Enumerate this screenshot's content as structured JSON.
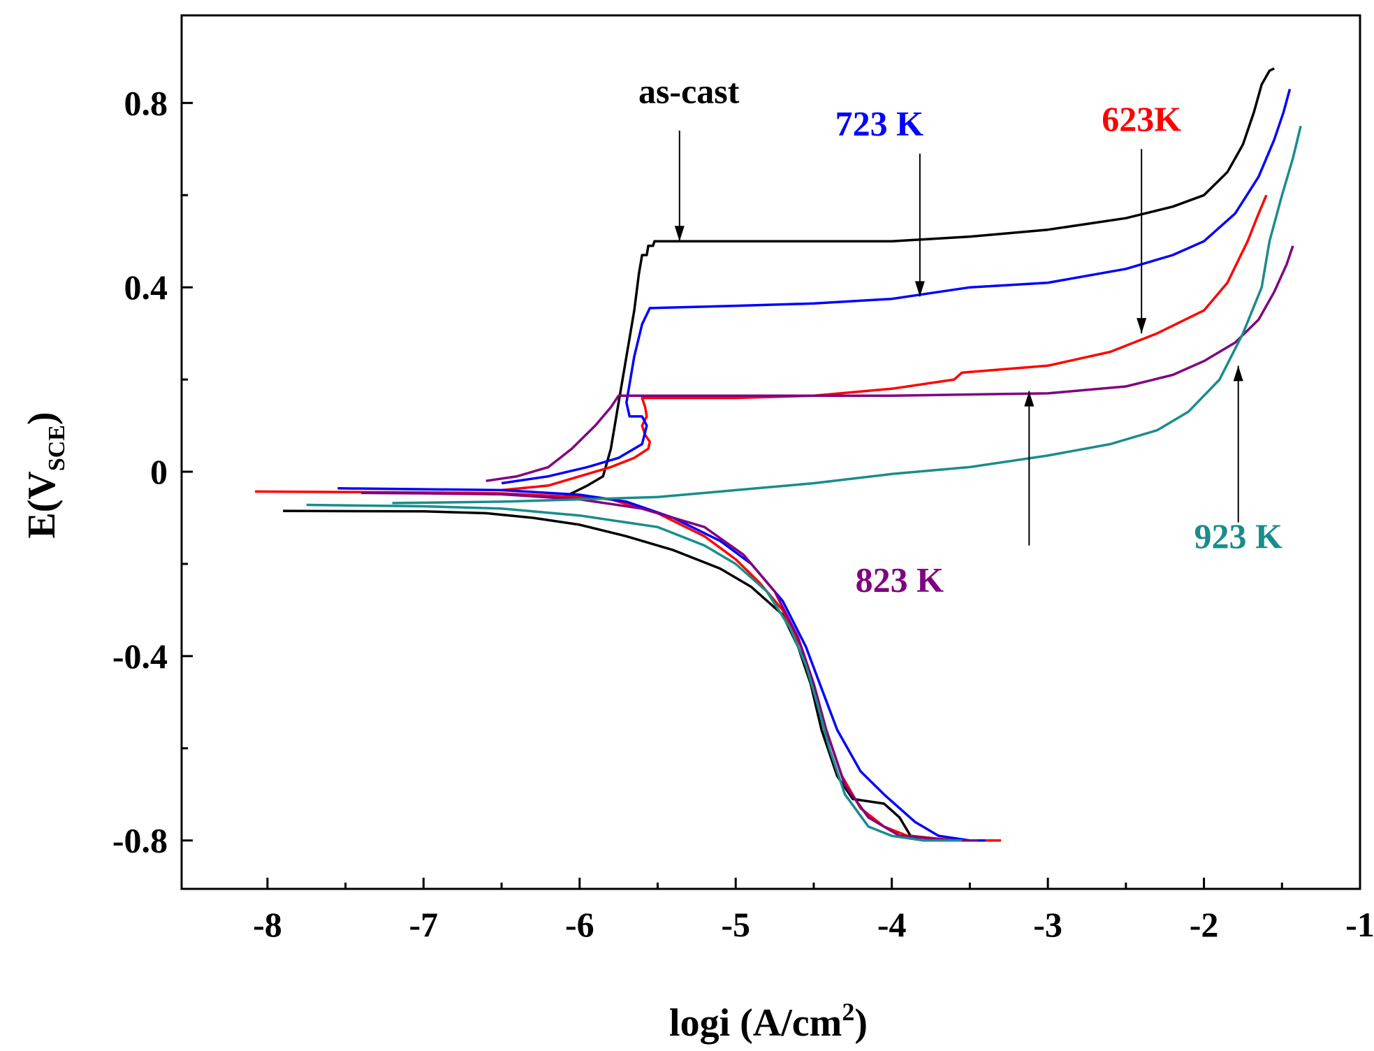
{
  "chart_data": {
    "type": "line",
    "title": "",
    "xlabel": {
      "main": "logi (A/cm",
      "sup": "2",
      "end": ")"
    },
    "ylabel": {
      "main": "E(V",
      "sub": "SCE",
      "end": ")"
    },
    "xlim": [
      -8.55,
      -1.0
    ],
    "ylim": [
      -0.905,
      0.99
    ],
    "xticks": [
      -8,
      -7,
      -6,
      -5,
      -4,
      -3,
      -2,
      -1
    ],
    "xtick_labels": [
      "-8",
      "-7",
      "-6",
      "-5",
      "-4",
      "-3",
      "-2",
      "-1"
    ],
    "yticks": [
      0.8,
      0.4,
      0.0,
      -0.4,
      -0.8
    ],
    "ytick_labels": [
      "0.8",
      "0.4",
      "0",
      "-0.4",
      "-0.8"
    ],
    "grid": false,
    "series": [
      {
        "name": "as-cast",
        "color": "#000000",
        "points": [
          [
            -7.9,
            -0.085
          ],
          [
            -7.0,
            -0.086
          ],
          [
            -6.6,
            -0.09
          ],
          [
            -6.3,
            -0.1
          ],
          [
            -6.0,
            -0.115
          ],
          [
            -5.7,
            -0.14
          ],
          [
            -5.4,
            -0.17
          ],
          [
            -5.1,
            -0.21
          ],
          [
            -4.9,
            -0.25
          ],
          [
            -4.7,
            -0.31
          ],
          [
            -4.6,
            -0.38
          ],
          [
            -4.52,
            -0.46
          ],
          [
            -4.45,
            -0.56
          ],
          [
            -4.35,
            -0.66
          ],
          [
            -4.25,
            -0.71
          ],
          [
            -4.05,
            -0.72
          ],
          [
            -3.95,
            -0.75
          ],
          [
            -3.88,
            -0.79
          ],
          [
            -3.6,
            -0.8
          ],
          [
            -3.5,
            -0.8
          ],
          null,
          [
            -6.1,
            -0.055
          ],
          [
            -5.95,
            -0.03
          ],
          [
            -5.85,
            -0.01
          ],
          [
            -5.8,
            0.05
          ],
          [
            -5.75,
            0.15
          ],
          [
            -5.7,
            0.25
          ],
          [
            -5.65,
            0.35
          ],
          [
            -5.62,
            0.43
          ],
          [
            -5.6,
            0.47
          ],
          [
            -5.57,
            0.47
          ],
          [
            -5.56,
            0.49
          ],
          [
            -5.53,
            0.49
          ],
          [
            -5.52,
            0.5
          ],
          [
            -5.0,
            0.5
          ],
          [
            -4.0,
            0.5
          ],
          [
            -3.5,
            0.51
          ],
          [
            -3.0,
            0.525
          ],
          [
            -2.5,
            0.55
          ],
          [
            -2.2,
            0.575
          ],
          [
            -2.0,
            0.6
          ],
          [
            -1.85,
            0.65
          ],
          [
            -1.75,
            0.71
          ],
          [
            -1.68,
            0.78
          ],
          [
            -1.63,
            0.84
          ],
          [
            -1.58,
            0.87
          ],
          [
            -1.55,
            0.875
          ]
        ]
      },
      {
        "name": "623K",
        "color": "#ff0000",
        "points": [
          [
            -8.08,
            -0.043
          ],
          [
            -7.5,
            -0.044
          ],
          [
            -7.0,
            -0.045
          ],
          [
            -6.5,
            -0.047
          ],
          [
            -6.0,
            -0.055
          ],
          [
            -5.8,
            -0.06
          ],
          [
            -5.5,
            -0.09
          ],
          [
            -5.2,
            -0.14
          ],
          [
            -5.0,
            -0.19
          ],
          [
            -4.85,
            -0.24
          ],
          [
            -4.7,
            -0.3
          ],
          [
            -4.58,
            -0.38
          ],
          [
            -4.5,
            -0.46
          ],
          [
            -4.42,
            -0.56
          ],
          [
            -4.32,
            -0.66
          ],
          [
            -4.2,
            -0.73
          ],
          [
            -4.05,
            -0.77
          ],
          [
            -3.9,
            -0.79
          ],
          [
            -3.6,
            -0.8
          ],
          [
            -3.3,
            -0.8
          ],
          null,
          [
            -6.5,
            -0.04
          ],
          [
            -6.2,
            -0.03
          ],
          [
            -6.0,
            -0.01
          ],
          [
            -5.8,
            0.01
          ],
          [
            -5.65,
            0.03
          ],
          [
            -5.56,
            0.05
          ],
          [
            -5.55,
            0.065
          ],
          [
            -5.58,
            0.08
          ],
          [
            -5.6,
            0.1
          ],
          [
            -5.57,
            0.12
          ],
          [
            -5.58,
            0.14
          ],
          [
            -5.6,
            0.16
          ],
          [
            -5.0,
            0.16
          ],
          [
            -4.5,
            0.165
          ],
          [
            -4.0,
            0.18
          ],
          [
            -3.6,
            0.2
          ],
          [
            -3.55,
            0.215
          ],
          [
            -3.0,
            0.23
          ],
          [
            -2.6,
            0.26
          ],
          [
            -2.3,
            0.3
          ],
          [
            -2.0,
            0.35
          ],
          [
            -1.85,
            0.41
          ],
          [
            -1.72,
            0.5
          ],
          [
            -1.65,
            0.56
          ],
          [
            -1.6,
            0.6
          ]
        ]
      },
      {
        "name": "723 K",
        "color": "#0000ff",
        "points": [
          [
            -7.55,
            -0.036
          ],
          [
            -7.0,
            -0.038
          ],
          [
            -6.5,
            -0.04
          ],
          [
            -6.0,
            -0.05
          ],
          [
            -5.7,
            -0.065
          ],
          [
            -5.4,
            -0.1
          ],
          [
            -5.1,
            -0.15
          ],
          [
            -4.9,
            -0.2
          ],
          [
            -4.7,
            -0.28
          ],
          [
            -4.55,
            -0.38
          ],
          [
            -4.45,
            -0.47
          ],
          [
            -4.35,
            -0.56
          ],
          [
            -4.2,
            -0.65
          ],
          [
            -4.05,
            -0.7
          ],
          [
            -3.95,
            -0.73
          ],
          [
            -3.85,
            -0.76
          ],
          [
            -3.7,
            -0.79
          ],
          [
            -3.5,
            -0.8
          ],
          [
            -3.4,
            -0.8
          ],
          null,
          [
            -6.5,
            -0.025
          ],
          [
            -6.2,
            -0.01
          ],
          [
            -5.95,
            0.01
          ],
          [
            -5.75,
            0.03
          ],
          [
            -5.6,
            0.06
          ],
          [
            -5.57,
            0.1
          ],
          [
            -5.6,
            0.12
          ],
          [
            -5.68,
            0.12
          ],
          [
            -5.7,
            0.15
          ],
          [
            -5.65,
            0.25
          ],
          [
            -5.6,
            0.32
          ],
          [
            -5.55,
            0.355
          ],
          [
            -5.0,
            0.36
          ],
          [
            -4.5,
            0.365
          ],
          [
            -4.0,
            0.375
          ],
          [
            -3.5,
            0.4
          ],
          [
            -3.0,
            0.41
          ],
          [
            -2.5,
            0.44
          ],
          [
            -2.2,
            0.47
          ],
          [
            -2.0,
            0.5
          ],
          [
            -1.8,
            0.56
          ],
          [
            -1.65,
            0.64
          ],
          [
            -1.55,
            0.72
          ],
          [
            -1.49,
            0.78
          ],
          [
            -1.45,
            0.83
          ]
        ]
      },
      {
        "name": "823 K",
        "color": "#800080",
        "points": [
          [
            -7.4,
            -0.046
          ],
          [
            -7.0,
            -0.047
          ],
          [
            -6.5,
            -0.049
          ],
          [
            -6.0,
            -0.06
          ],
          [
            -5.6,
            -0.08
          ],
          [
            -5.2,
            -0.12
          ],
          [
            -4.95,
            -0.18
          ],
          [
            -4.75,
            -0.26
          ],
          [
            -4.6,
            -0.36
          ],
          [
            -4.5,
            -0.46
          ],
          [
            -4.42,
            -0.56
          ],
          [
            -4.3,
            -0.68
          ],
          [
            -4.15,
            -0.75
          ],
          [
            -3.95,
            -0.79
          ],
          [
            -3.6,
            -0.8
          ],
          [
            -3.45,
            -0.8
          ],
          null,
          [
            -6.6,
            -0.02
          ],
          [
            -6.4,
            -0.01
          ],
          [
            -6.2,
            0.01
          ],
          [
            -6.05,
            0.05
          ],
          [
            -5.9,
            0.1
          ],
          [
            -5.8,
            0.14
          ],
          [
            -5.75,
            0.165
          ],
          [
            -5.0,
            0.165
          ],
          [
            -4.0,
            0.165
          ],
          [
            -3.0,
            0.17
          ],
          [
            -2.5,
            0.185
          ],
          [
            -2.2,
            0.21
          ],
          [
            -2.0,
            0.24
          ],
          [
            -1.8,
            0.28
          ],
          [
            -1.65,
            0.33
          ],
          [
            -1.55,
            0.39
          ],
          [
            -1.47,
            0.45
          ],
          [
            -1.43,
            0.49
          ]
        ]
      },
      {
        "name": "923 K",
        "color": "#1a8c8c",
        "points": [
          [
            -7.75,
            -0.072
          ],
          [
            -7.0,
            -0.075
          ],
          [
            -6.5,
            -0.08
          ],
          [
            -6.0,
            -0.095
          ],
          [
            -5.5,
            -0.12
          ],
          [
            -5.2,
            -0.16
          ],
          [
            -5.0,
            -0.2
          ],
          [
            -4.8,
            -0.26
          ],
          [
            -4.65,
            -0.34
          ],
          [
            -4.55,
            -0.42
          ],
          [
            -4.48,
            -0.5
          ],
          [
            -4.4,
            -0.6
          ],
          [
            -4.3,
            -0.7
          ],
          [
            -4.15,
            -0.77
          ],
          [
            -4.0,
            -0.79
          ],
          [
            -3.8,
            -0.8
          ],
          [
            -3.55,
            -0.8
          ],
          null,
          [
            -7.2,
            -0.068
          ],
          [
            -6.5,
            -0.065
          ],
          [
            -6.0,
            -0.06
          ],
          [
            -5.5,
            -0.055
          ],
          [
            -5.0,
            -0.04
          ],
          [
            -4.5,
            -0.025
          ],
          [
            -4.0,
            -0.005
          ],
          [
            -3.5,
            0.01
          ],
          [
            -3.0,
            0.035
          ],
          [
            -2.6,
            0.06
          ],
          [
            -2.3,
            0.09
          ],
          [
            -2.1,
            0.13
          ],
          [
            -1.9,
            0.2
          ],
          [
            -1.75,
            0.3
          ],
          [
            -1.63,
            0.4
          ],
          [
            -1.58,
            0.5
          ],
          [
            -1.5,
            0.6
          ],
          [
            -1.43,
            0.68
          ],
          [
            -1.38,
            0.75
          ]
        ]
      }
    ],
    "annotations": [
      {
        "text": "as-cast",
        "color": "#000000",
        "label_at": [
          -5.3,
          0.8
        ],
        "arrow_from": [
          -5.36,
          0.74
        ],
        "arrow_to": [
          -5.36,
          0.5
        ]
      },
      {
        "text": "723 K",
        "color": "#0000ff",
        "label_at": [
          -4.08,
          0.73
        ],
        "arrow_from": [
          -3.82,
          0.69
        ],
        "arrow_to": [
          -3.82,
          0.38
        ]
      },
      {
        "text": "623K",
        "color": "#ff0000",
        "label_at": [
          -2.4,
          0.74
        ],
        "arrow_from": [
          -2.4,
          0.7
        ],
        "arrow_to": [
          -2.4,
          0.3
        ]
      },
      {
        "text": "823 K",
        "color": "#800080",
        "label_at": [
          -3.95,
          -0.26
        ],
        "arrow_from": [
          -3.12,
          -0.16
        ],
        "arrow_to": [
          -3.12,
          0.175
        ]
      },
      {
        "text": "923 K",
        "color": "#1a8c8c",
        "label_at": [
          -1.78,
          -0.165
        ],
        "arrow_from": [
          -1.78,
          -0.11
        ],
        "arrow_to": [
          -1.78,
          0.23
        ]
      }
    ]
  }
}
